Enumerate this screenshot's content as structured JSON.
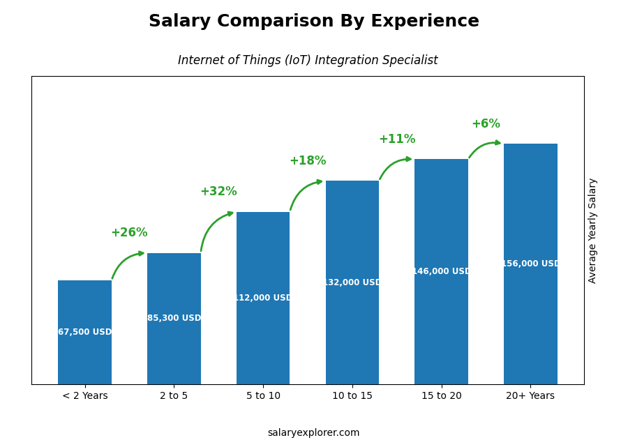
{
  "chart_data": {
    "type": "bar",
    "title": "Salary Comparison By Experience",
    "subtitle": "Internet of Things (IoT) Integration Specialist",
    "categories": [
      "< 2 Years",
      "2 to 5",
      "5 to 10",
      "10 to 15",
      "15 to 20",
      "20+ Years"
    ],
    "values": [
      67500,
      85300,
      112000,
      132000,
      146000,
      156000
    ],
    "value_labels": [
      "67,500 USD",
      "85,300 USD",
      "112,000 USD",
      "132,000 USD",
      "146,000 USD",
      "156,000 USD"
    ],
    "data_labels": true,
    "annotations": [
      "+26%",
      "+32%",
      "+18%",
      "+11%",
      "+6%"
    ],
    "ylabel": "Average Yearly Salary",
    "footer": "salaryexplorer.com",
    "ylim": [
      0,
      200000
    ],
    "tick_labels": "x",
    "grid": false
  }
}
